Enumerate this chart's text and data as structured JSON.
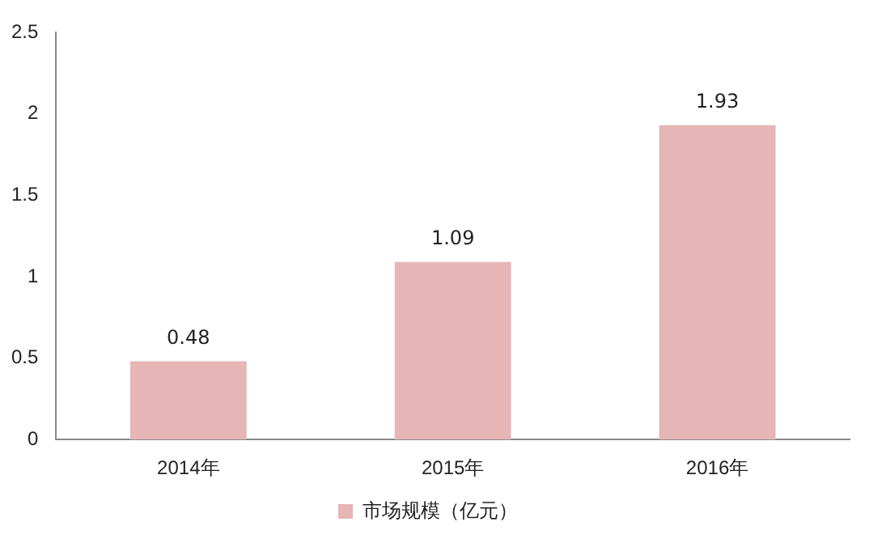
{
  "chart_data": {
    "type": "bar",
    "categories": [
      "2014年",
      "2015年",
      "2016年"
    ],
    "series": [
      {
        "name": "市场规模（亿元）",
        "color": "#e6b5b5",
        "values": [
          0.48,
          1.09,
          1.93
        ]
      }
    ],
    "ylim": [
      0,
      2.5
    ],
    "yticks": [
      0,
      0.5,
      1,
      1.5,
      2,
      2.5
    ],
    "grid": false,
    "data_labels": true,
    "legend": "bottom"
  }
}
